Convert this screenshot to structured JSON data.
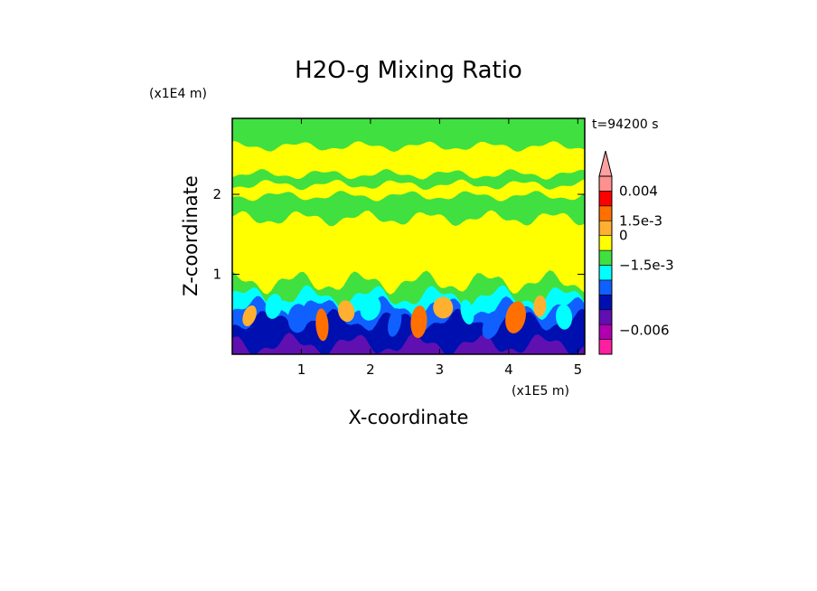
{
  "chart_data": {
    "type": "heatmap",
    "title": "H2O-g Mixing Ratio",
    "xlabel": "X-coordinate",
    "ylabel": "Z-coordinate",
    "x_unit": "(x1E5 m)",
    "y_unit": "(x1E4 m)",
    "time_label": "t=94200 s",
    "xlim": [
      0.0,
      5.1
    ],
    "ylim": [
      0.0,
      2.95
    ],
    "x_ticks": [
      {
        "value": 1,
        "label": "1"
      },
      {
        "value": 2,
        "label": "2"
      },
      {
        "value": 3,
        "label": "3"
      },
      {
        "value": 4,
        "label": "4"
      },
      {
        "value": 5,
        "label": "5"
      }
    ],
    "y_ticks": [
      {
        "value": 1,
        "label": "1"
      },
      {
        "value": 2,
        "label": "2"
      }
    ],
    "colorbar": {
      "levels": [
        {
          "color": "#ff20a0"
        },
        {
          "color": "#b000b0"
        },
        {
          "color": "#6010b0"
        },
        {
          "color": "#0010b0"
        },
        {
          "color": "#1060ff"
        },
        {
          "color": "#00ffff"
        },
        {
          "color": "#40e040"
        },
        {
          "color": "#ffff00"
        },
        {
          "color": "#ffb030"
        },
        {
          "color": "#ff7000"
        },
        {
          "color": "#ff0000"
        },
        {
          "color": "#ff9090"
        }
      ],
      "top_triangle_color": "#ffa0a0",
      "labels": [
        {
          "text": "0.004",
          "level": 11.0
        },
        {
          "text": "1.5e-3",
          "level": 9.0
        },
        {
          "text": "0",
          "level": 8.0
        },
        {
          "text": "−1.5e-3",
          "level": 6.0
        },
        {
          "text": "−0.006",
          "level": 1.6
        }
      ]
    },
    "field_bands": [
      {
        "z_from": 0.0,
        "z_to": 0.12,
        "color": "#6010b0"
      },
      {
        "z_from": 0.12,
        "z_to": 0.42,
        "color": "#0010b0"
      },
      {
        "z_from": 0.42,
        "z_to": 0.58,
        "color": "#1060ff"
      },
      {
        "z_from": 0.58,
        "z_to": 0.72,
        "color": "#00ffff"
      },
      {
        "z_from": 0.72,
        "z_to": 0.9,
        "color": "#40e040"
      },
      {
        "z_from": 0.9,
        "z_to": 1.7,
        "color": "#ffff00"
      },
      {
        "z_from": 1.7,
        "z_to": 1.98,
        "color": "#40e040"
      },
      {
        "z_from": 1.98,
        "z_to": 2.12,
        "color": "#ffff00"
      },
      {
        "z_from": 2.12,
        "z_to": 2.25,
        "color": "#40e040"
      },
      {
        "z_from": 2.25,
        "z_to": 2.6,
        "color": "#ffff00"
      },
      {
        "z_from": 2.6,
        "z_to": 2.95,
        "color": "#40e040"
      }
    ]
  }
}
